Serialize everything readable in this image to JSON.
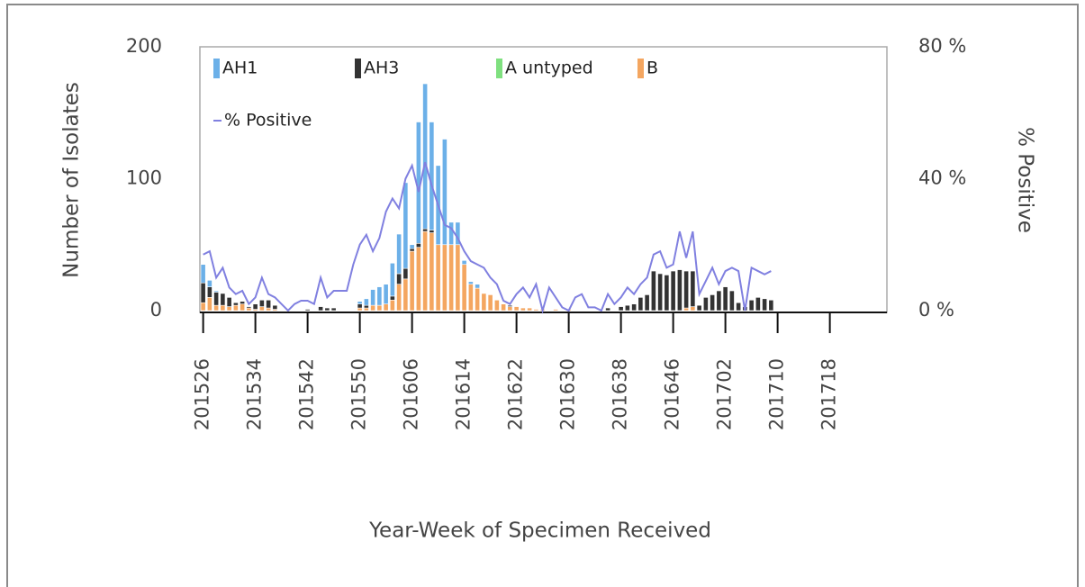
{
  "chart_data": {
    "type": "bar",
    "x_label": "Year-Week of Specimen Received",
    "y_label": "Number of Isolates",
    "y2_label": "% Positive",
    "categories": [
      "201526",
      null,
      null,
      null,
      null,
      null,
      null,
      null,
      "201534",
      null,
      null,
      null,
      null,
      null,
      null,
      null,
      "201542",
      null,
      null,
      null,
      null,
      null,
      null,
      null,
      "201550",
      null,
      null,
      null,
      null,
      null,
      null,
      null,
      "201606",
      null,
      null,
      null,
      null,
      null,
      null,
      null,
      "201614",
      null,
      null,
      null,
      null,
      null,
      null,
      null,
      "201622",
      null,
      null,
      null,
      null,
      null,
      null,
      null,
      "201630",
      null,
      null,
      null,
      null,
      null,
      null,
      null,
      "201638",
      null,
      null,
      null,
      null,
      null,
      null,
      null,
      "201646",
      null,
      null,
      null,
      null,
      null,
      null,
      null,
      "201702",
      null,
      null,
      null,
      null,
      null,
      null,
      null,
      "201710",
      null,
      null,
      null,
      null,
      null,
      null,
      null,
      "201718",
      null,
      null,
      null,
      null,
      null,
      null,
      null,
      null
    ],
    "ylim": [
      0,
      200
    ],
    "yticks": [
      0,
      100,
      200
    ],
    "y2lim": [
      0,
      80
    ],
    "y2ticks": [
      {
        "value": 0,
        "label": "0 %"
      },
      {
        "value": 40,
        "label": "40 %"
      },
      {
        "value": 80,
        "label": "80 %"
      }
    ],
    "stacked": true,
    "series": [
      {
        "name": "AH1",
        "color": "#6cb0e8",
        "values": [
          14,
          5,
          1,
          0,
          0,
          0,
          0,
          0,
          0,
          0,
          0,
          0,
          0,
          0,
          0,
          0,
          0,
          0,
          0,
          0,
          0,
          0,
          0,
          0,
          2,
          5,
          12,
          14,
          15,
          25,
          30,
          65,
          3,
          92,
          110,
          82,
          60,
          80,
          17,
          17,
          3,
          2,
          3,
          0,
          0,
          0,
          0,
          0,
          0,
          0,
          0,
          0,
          0,
          0,
          0,
          0,
          0,
          0,
          0,
          0,
          0,
          0,
          0,
          0,
          0,
          0,
          0,
          0,
          0,
          0,
          0,
          0,
          0,
          0,
          0,
          0,
          0,
          0,
          0,
          0,
          0,
          0,
          0,
          0,
          0,
          0,
          0,
          0,
          null,
          null,
          null,
          null,
          null,
          null,
          null,
          null,
          null,
          null,
          null,
          null,
          null,
          null,
          null,
          null,
          null
        ]
      },
      {
        "name": "AH3",
        "color": "#333333",
        "values": [
          15,
          8,
          10,
          9,
          7,
          2,
          2,
          1,
          4,
          5,
          6,
          3,
          0,
          0,
          0,
          0,
          1,
          0,
          3,
          2,
          2,
          0,
          0,
          0,
          3,
          2,
          0,
          0,
          0,
          3,
          8,
          8,
          2,
          3,
          2,
          2,
          0,
          0,
          0,
          0,
          0,
          0,
          0,
          0,
          0,
          0,
          0,
          1,
          0,
          0,
          0,
          0,
          0,
          0,
          0,
          0,
          0,
          0,
          0,
          0,
          0,
          0,
          2,
          0,
          3,
          4,
          5,
          10,
          12,
          30,
          28,
          27,
          30,
          31,
          28,
          27,
          4,
          10,
          12,
          15,
          18,
          15,
          6,
          3,
          8,
          10,
          9,
          8,
          null,
          null,
          null,
          null,
          null,
          null,
          null,
          null,
          null,
          null,
          null,
          null,
          null,
          null,
          null,
          null,
          null
        ]
      },
      {
        "name": "A untyped",
        "color": "#7fe07f",
        "values": [
          0,
          0,
          0,
          0,
          0,
          0,
          0,
          0,
          0,
          0,
          0,
          0,
          0,
          0,
          0,
          0,
          0,
          0,
          0,
          0,
          0,
          0,
          0,
          0,
          0,
          0,
          0,
          0,
          0,
          0,
          0,
          0,
          0,
          0,
          0,
          0,
          0,
          0,
          0,
          0,
          0,
          0,
          0,
          0,
          0,
          0,
          0,
          0,
          0,
          0,
          0,
          0,
          0,
          0,
          0,
          0,
          0,
          0,
          0,
          0,
          0,
          0,
          0,
          0,
          0,
          0,
          0,
          0,
          0,
          0,
          0,
          0,
          0,
          0,
          0,
          0,
          0,
          0,
          0,
          0,
          0,
          0,
          0,
          0,
          0,
          0,
          0,
          0,
          null,
          null,
          null,
          null,
          null,
          null,
          null,
          null,
          null,
          null,
          null,
          null,
          null,
          null,
          null,
          null,
          null
        ]
      },
      {
        "name": "B",
        "color": "#f4a660",
        "values": [
          6,
          10,
          4,
          4,
          3,
          4,
          5,
          2,
          1,
          3,
          2,
          1,
          0,
          0,
          0,
          0,
          0,
          0,
          0,
          0,
          0,
          0,
          0,
          0,
          2,
          2,
          4,
          4,
          5,
          8,
          20,
          24,
          45,
          48,
          60,
          59,
          50,
          50,
          50,
          50,
          35,
          20,
          17,
          13,
          12,
          8,
          5,
          3,
          3,
          2,
          2,
          1,
          1,
          0,
          1,
          0,
          1,
          0,
          0,
          0,
          0,
          0,
          0,
          0,
          0,
          0,
          0,
          0,
          0,
          0,
          0,
          0,
          0,
          0,
          2,
          3,
          0,
          0,
          0,
          0,
          0,
          0,
          0,
          0,
          0,
          0,
          0,
          0,
          null,
          null,
          null,
          null,
          null,
          null,
          null,
          null,
          null,
          null,
          null,
          null,
          null,
          null,
          null,
          null,
          null
        ]
      },
      {
        "name": "% Positive",
        "color": "#8080e0",
        "type": "line",
        "axis": "y2",
        "values": [
          17,
          18,
          10,
          13,
          7,
          5,
          6,
          2,
          4,
          10,
          5,
          4,
          2,
          0,
          2,
          3,
          3,
          2,
          10,
          4,
          6,
          6,
          6,
          14,
          20,
          23,
          18,
          22,
          30,
          34,
          31,
          40,
          44,
          36,
          45,
          38,
          32,
          26,
          25,
          22,
          18,
          15,
          14,
          13,
          10,
          8,
          3,
          2,
          5,
          7,
          4,
          8,
          0,
          7,
          4,
          1,
          0,
          4,
          5,
          1,
          1,
          0,
          5,
          2,
          4,
          7,
          5,
          8,
          10,
          17,
          18,
          13,
          14,
          24,
          16,
          24,
          5,
          9,
          13,
          8,
          12,
          13,
          12,
          0,
          13,
          12,
          11,
          12,
          null,
          null,
          null,
          null,
          null,
          null,
          null,
          null,
          null,
          null,
          null,
          null,
          null,
          null,
          null,
          null,
          null
        ]
      }
    ]
  }
}
